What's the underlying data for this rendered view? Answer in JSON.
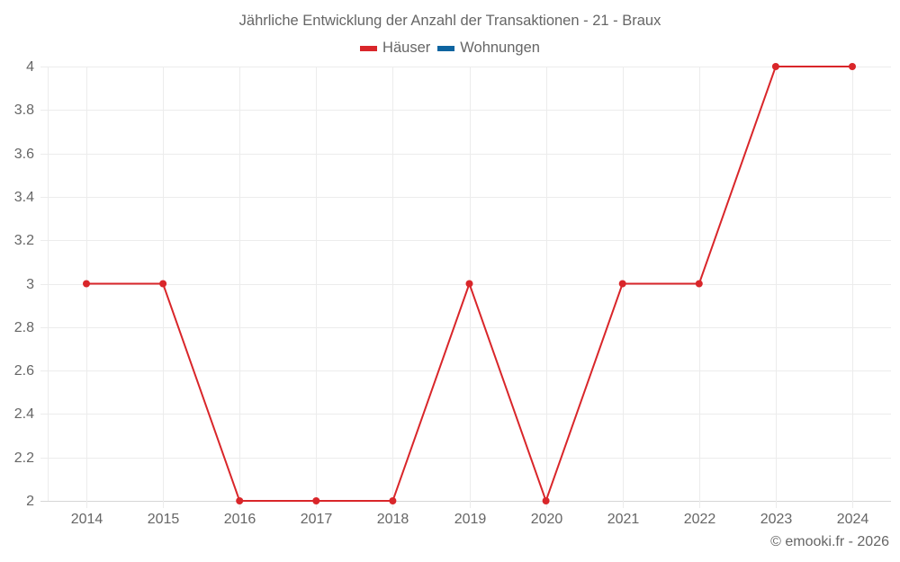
{
  "chart": {
    "title": "Jährliche Entwicklung der Anzahl der Transaktionen - 21 - Braux",
    "credit": "© emooki.fr - 2026",
    "legend": [
      {
        "label": "Häuser",
        "color": "#d9262a"
      },
      {
        "label": "Wohnungen",
        "color": "#0e64a0"
      }
    ],
    "y_ticks": [
      "4",
      "3.8",
      "3.6",
      "3.4",
      "3.2",
      "3",
      "2.8",
      "2.6",
      "2.4",
      "2.2",
      "2"
    ],
    "x_ticks": [
      "2014",
      "2015",
      "2016",
      "2017",
      "2018",
      "2019",
      "2020",
      "2021",
      "2022",
      "2023",
      "2024"
    ]
  },
  "chart_data": {
    "type": "line",
    "title": "Jährliche Entwicklung der Anzahl der Transaktionen - 21 - Braux",
    "xlabel": "",
    "ylabel": "",
    "x": [
      2014,
      2015,
      2016,
      2017,
      2018,
      2019,
      2020,
      2021,
      2022,
      2023,
      2024
    ],
    "series": [
      {
        "name": "Häuser",
        "color": "#d9262a",
        "values": [
          3,
          3,
          2,
          2,
          2,
          3,
          2,
          3,
          3,
          4,
          4
        ]
      },
      {
        "name": "Wohnungen",
        "color": "#0e64a0",
        "values": []
      }
    ],
    "ylim": [
      2,
      4
    ],
    "grid": true,
    "legend_position": "top"
  }
}
